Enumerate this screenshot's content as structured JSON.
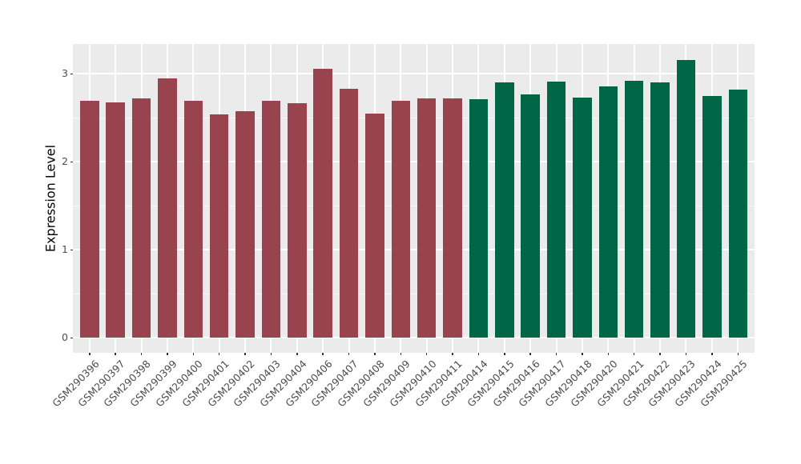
{
  "chart_data": {
    "type": "bar",
    "title": "",
    "xlabel": "",
    "ylabel": "Expression Level",
    "ylim": [
      -0.17,
      3.34
    ],
    "yticks": [
      0,
      1,
      2,
      3
    ],
    "minor_yticks": [
      0.5,
      1.5,
      2.5
    ],
    "grid": "on",
    "legend": "none",
    "panel_bg": "#EBEBEB",
    "grid_color": "#FFFFFF",
    "tick_label_color": "#4D4D4D",
    "group_colors": {
      "left_group": "#99434F",
      "right_group": "#006646"
    },
    "categories": [
      "GSM290396",
      "GSM290397",
      "GSM290398",
      "GSM290399",
      "GSM290400",
      "GSM290401",
      "GSM290402",
      "GSM290403",
      "GSM290404",
      "GSM290406",
      "GSM290407",
      "GSM290408",
      "GSM290409",
      "GSM290410",
      "GSM290411",
      "GSM290414",
      "GSM290415",
      "GSM290416",
      "GSM290417",
      "GSM290418",
      "GSM290420",
      "GSM290421",
      "GSM290422",
      "GSM290423",
      "GSM290424",
      "GSM290425"
    ],
    "values": [
      2.69,
      2.68,
      2.72,
      2.95,
      2.69,
      2.54,
      2.58,
      2.69,
      2.67,
      3.06,
      2.83,
      2.55,
      2.69,
      2.72,
      2.72,
      2.71,
      2.9,
      2.77,
      2.91,
      2.73,
      2.86,
      2.92,
      2.9,
      3.16,
      2.75,
      2.82
    ],
    "bar_colors": [
      "#99434F",
      "#99434F",
      "#99434F",
      "#99434F",
      "#99434F",
      "#99434F",
      "#99434F",
      "#99434F",
      "#99434F",
      "#99434F",
      "#99434F",
      "#99434F",
      "#99434F",
      "#99434F",
      "#99434F",
      "#006646",
      "#006646",
      "#006646",
      "#006646",
      "#006646",
      "#006646",
      "#006646",
      "#006646",
      "#006646",
      "#006646",
      "#006646"
    ]
  }
}
